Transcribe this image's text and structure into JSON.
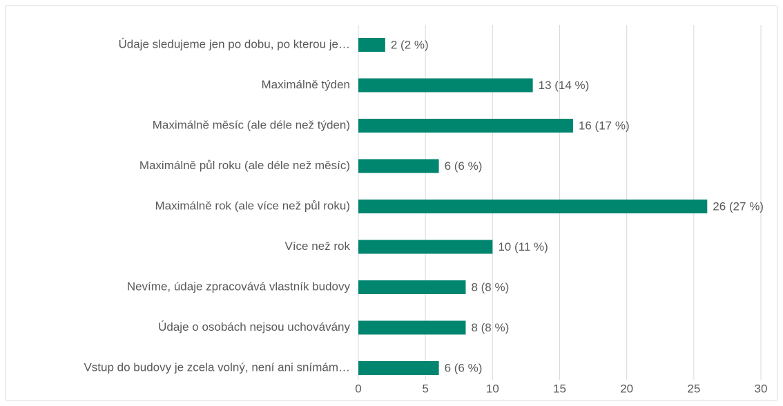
{
  "chart_data": {
    "type": "bar",
    "orientation": "horizontal",
    "categories": [
      "Údaje sledujeme jen po dobu, po kterou je…",
      "Maximálně týden",
      "Maximálně měsíc (ale déle než týden)",
      "Maximálně půl roku (ale déle než měsíc)",
      "Maximálně rok (ale více než půl roku)",
      "Více než rok",
      "Nevíme, údaje zpracovává vlastník budovy",
      "Údaje o osobách nejsou uchovávány",
      "Vstup do budovy je zcela volný, není ani snímám…"
    ],
    "values": [
      2,
      13,
      16,
      6,
      26,
      10,
      8,
      8,
      6
    ],
    "value_labels": [
      "2 (2 %)",
      "13 (14 %)",
      "16 (17 %)",
      "6 (6 %)",
      "26 (27 %)",
      "10 (11 %)",
      "8 (8 %)",
      "8 (8 %)",
      "6 (6 %)"
    ],
    "color": "#00856f",
    "xlim": [
      0,
      30
    ],
    "xticks": [
      0,
      5,
      10,
      15,
      20,
      25,
      30
    ],
    "grid": true
  }
}
